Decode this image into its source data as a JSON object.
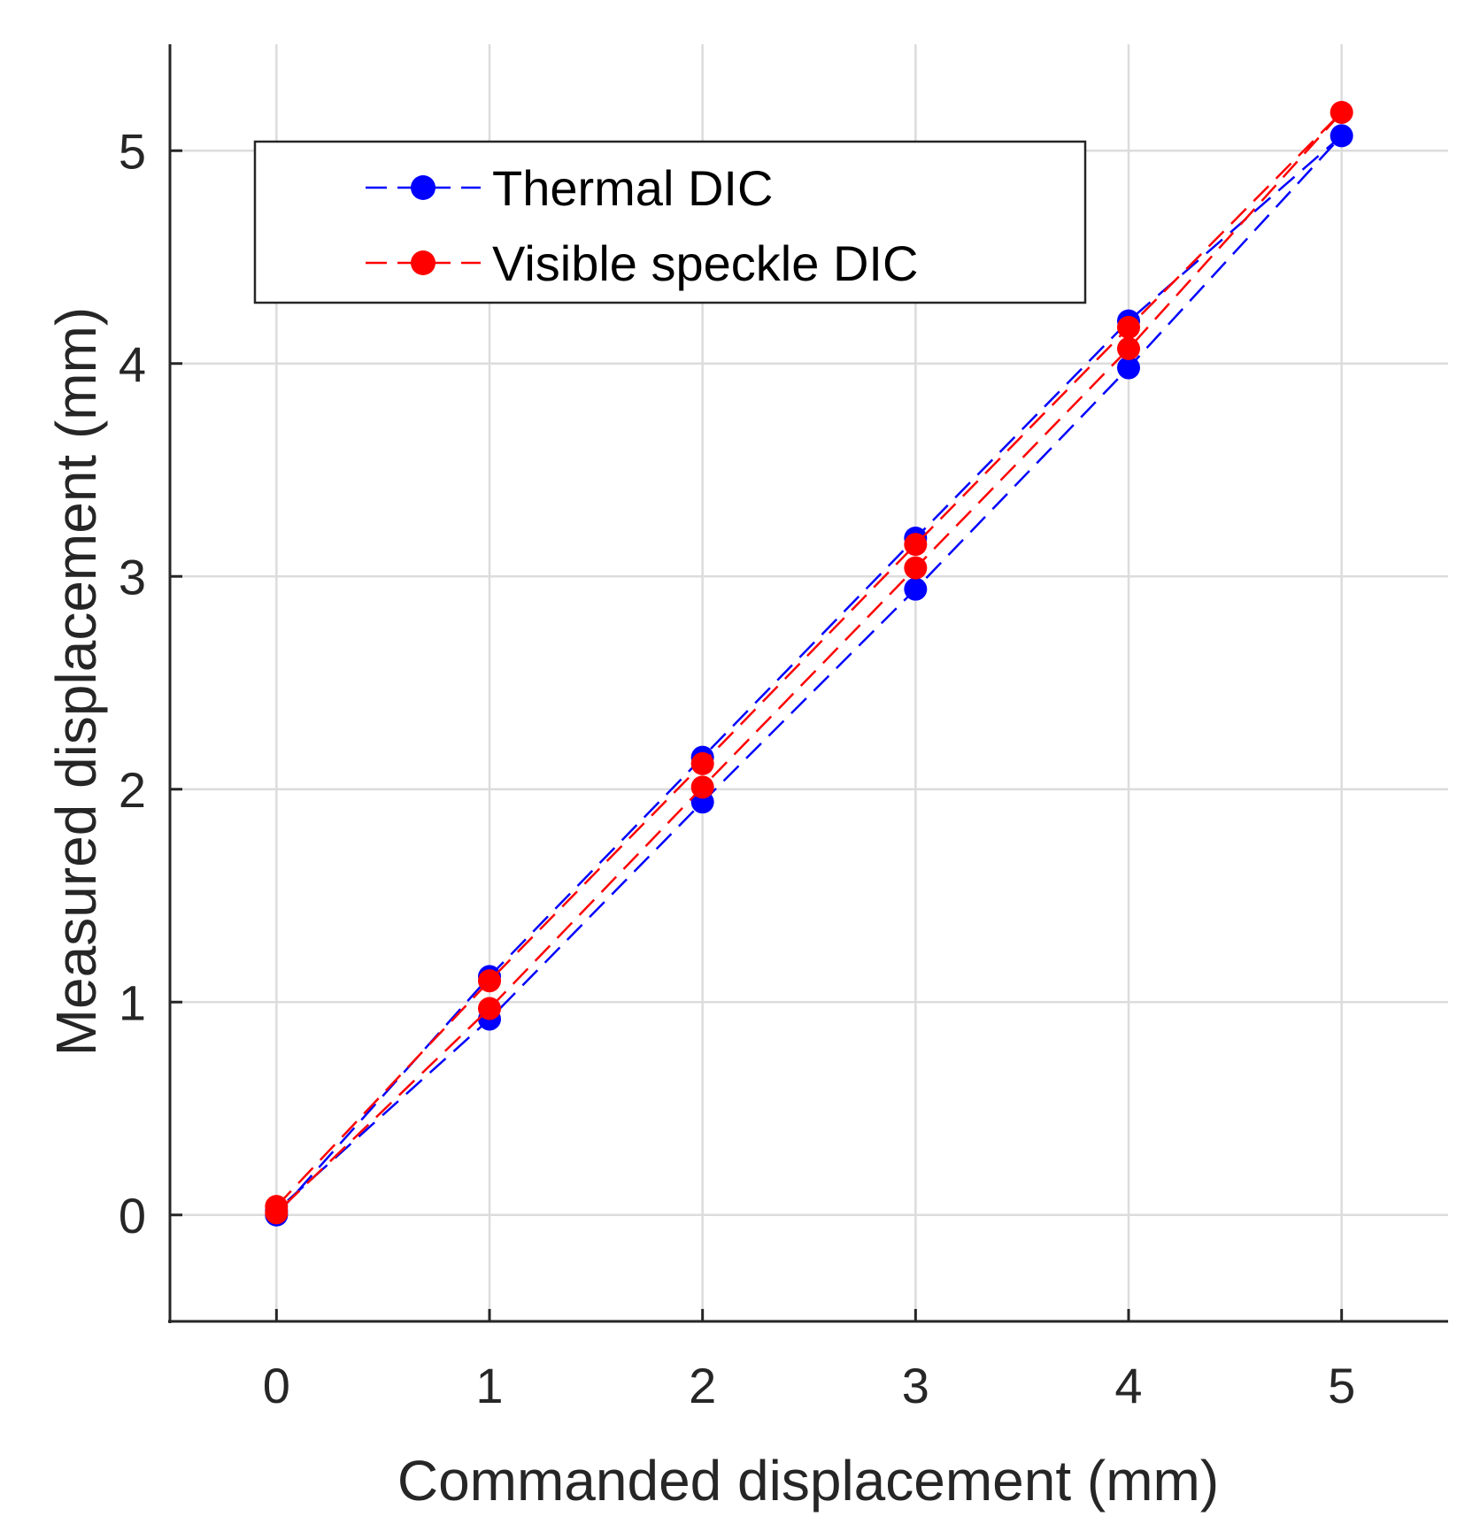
{
  "chart_data": {
    "type": "line",
    "title": "",
    "xlabel": "Commanded displacement (mm)",
    "ylabel": "Measured displacement (mm)",
    "xlim": [
      -0.5,
      5.5
    ],
    "ylim": [
      -0.5,
      5.5
    ],
    "xticks": [
      0,
      1,
      2,
      3,
      4,
      5
    ],
    "yticks": [
      0,
      1,
      2,
      3,
      4,
      5
    ],
    "grid": true,
    "legend_position": "top-left",
    "series": [
      {
        "name": "Thermal DIC",
        "color": "#0000ff",
        "line_style": "dashed",
        "marker": "circle",
        "points": [
          [
            0,
            0.0
          ],
          [
            1,
            1.12
          ],
          [
            2,
            2.15
          ],
          [
            3,
            3.18
          ],
          [
            4,
            4.2
          ],
          [
            5,
            5.07
          ],
          [
            4,
            3.98
          ],
          [
            3,
            2.94
          ],
          [
            2,
            1.94
          ],
          [
            1,
            0.92
          ],
          [
            0,
            0.02
          ]
        ]
      },
      {
        "name": "Visible speckle DIC",
        "color": "#ff0000",
        "line_style": "dashed",
        "marker": "circle",
        "points": [
          [
            0,
            0.04
          ],
          [
            1,
            1.1
          ],
          [
            2,
            2.12
          ],
          [
            3,
            3.15
          ],
          [
            4,
            4.17
          ],
          [
            5,
            5.18
          ],
          [
            4,
            4.07
          ],
          [
            3,
            3.04
          ],
          [
            2,
            2.01
          ],
          [
            1,
            0.97
          ],
          [
            0,
            0.01
          ]
        ]
      }
    ]
  }
}
